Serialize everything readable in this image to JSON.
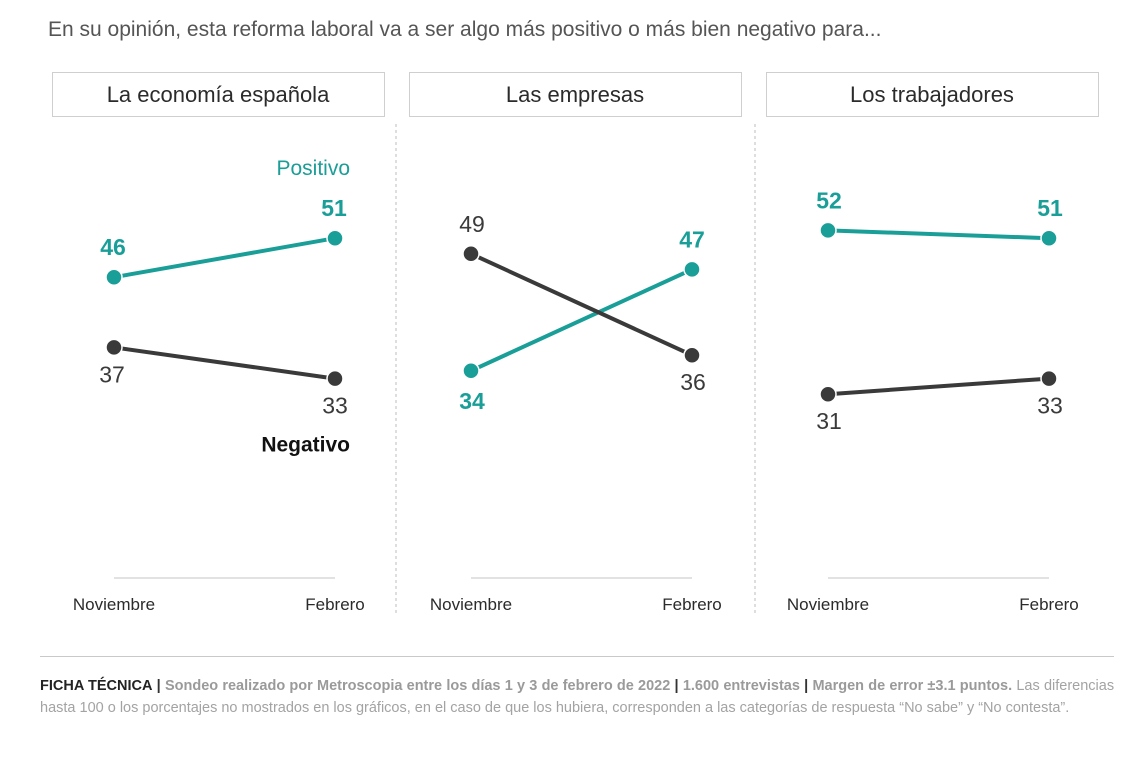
{
  "question": "En su opinión, esta reforma laboral va a ser algo más positivo o más bien negativo para...",
  "colors": {
    "positive": "#1a9e98",
    "negative": "#3a3a3a",
    "grid": "#d8d8d8",
    "divider": "#bdbdbd"
  },
  "chart_data": [
    {
      "type": "line",
      "title": "La economía española",
      "categories": [
        "Noviembre",
        "Febrero"
      ],
      "series": [
        {
          "name": "Positivo",
          "values": [
            46,
            51
          ]
        },
        {
          "name": "Negativo",
          "values": [
            37,
            33
          ]
        }
      ],
      "legend": {
        "positive": "Positivo",
        "negative": "Negativo"
      },
      "ylim": [
        0,
        100
      ]
    },
    {
      "type": "line",
      "title": "Las empresas",
      "categories": [
        "Noviembre",
        "Febrero"
      ],
      "series": [
        {
          "name": "Positivo",
          "values": [
            34,
            47
          ]
        },
        {
          "name": "Negativo",
          "values": [
            49,
            36
          ]
        }
      ],
      "ylim": [
        0,
        100
      ]
    },
    {
      "type": "line",
      "title": "Los trabajadores",
      "categories": [
        "Noviembre",
        "Febrero"
      ],
      "series": [
        {
          "name": "Positivo",
          "values": [
            52,
            51
          ]
        },
        {
          "name": "Negativo",
          "values": [
            31,
            33
          ]
        }
      ],
      "ylim": [
        0,
        100
      ]
    }
  ],
  "footer": {
    "label": "FICHA TÉCNICA",
    "sep": "|",
    "part1": "Sondeo realizado por Metroscopia entre los días 1 y 3 de febrero de 2022",
    "part2": "1.600 entrevistas",
    "part3": "Margen de error ±3.1 puntos.",
    "note": "Las diferencias hasta 100 o los porcentajes no mostrados en los gráficos, en el caso de que los hubiera, corresponden a las categorías de respuesta “No sabe” y “No contesta”."
  }
}
